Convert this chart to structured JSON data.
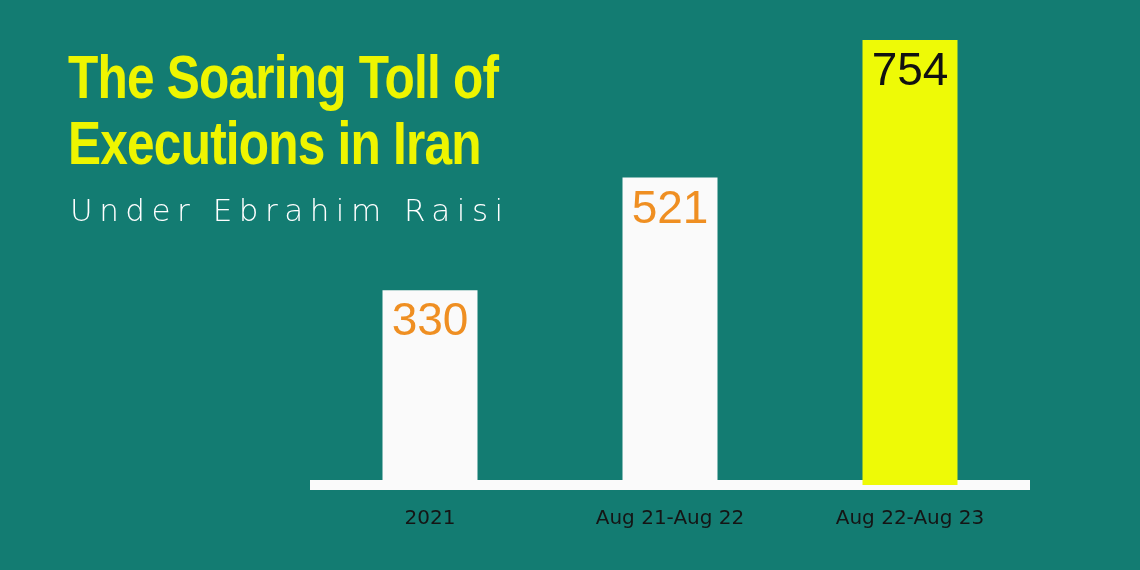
{
  "chart_data": {
    "type": "bar",
    "title": "The Soaring Toll of Executions in Iran",
    "subtitle": "Under Ebrahim Raisi",
    "categories": [
      "2021",
      "Aug 21-Aug 22",
      "Aug 22-Aug 23"
    ],
    "values": [
      330,
      521,
      754
    ],
    "colors": [
      "#fafafa",
      "#fafafa",
      "#eefa06"
    ],
    "data_labels": true,
    "tick_labels": "x"
  }
}
